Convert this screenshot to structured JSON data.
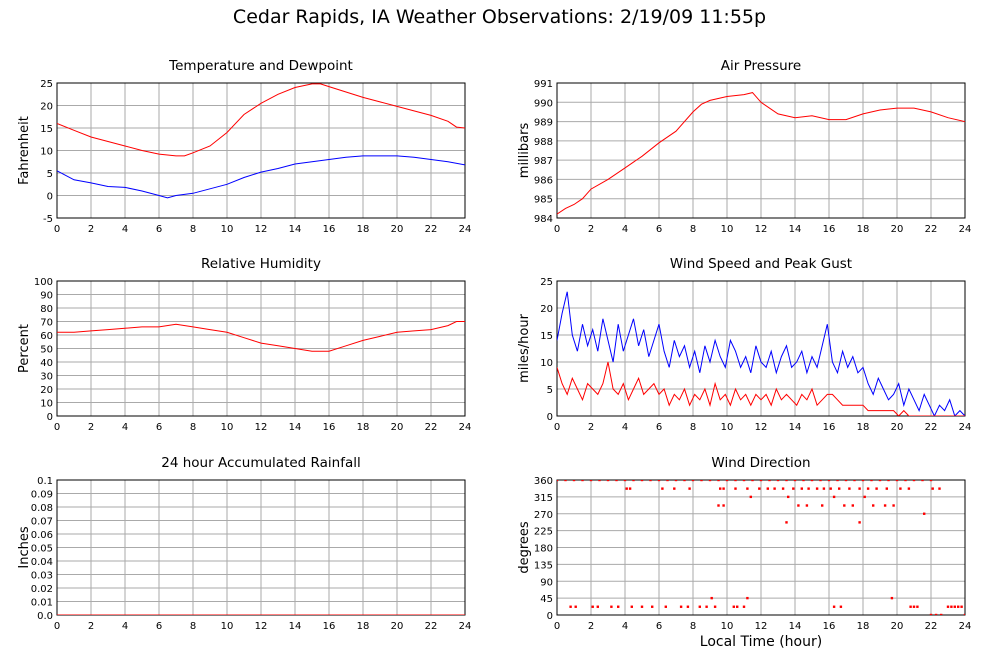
{
  "title": "Cedar Rapids, IA Weather Observations: 2/19/09 11:55p",
  "xlabel": "Local Time (hour)",
  "colors": {
    "red": "#ff0000",
    "blue": "#0000ff",
    "grid": "#aaaaaa"
  },
  "chart_data": [
    {
      "id": "temp",
      "type": "line",
      "title": "Temperature and Dewpoint",
      "ylabel": "Fahrenheit",
      "xlim": [
        0,
        24
      ],
      "ylim": [
        -5,
        25
      ],
      "xticks": [
        "0",
        "2",
        "4",
        "6",
        "8",
        "10",
        "12",
        "14",
        "16",
        "18",
        "20",
        "22",
        "24"
      ],
      "yticks": [
        "-5",
        "0",
        "5",
        "10",
        "15",
        "20",
        "25"
      ],
      "grid": true,
      "series": [
        {
          "color": "#ff0000",
          "x": [
            0,
            1,
            2,
            3,
            4,
            5,
            6,
            7,
            7.5,
            8,
            9,
            10,
            11,
            12,
            13,
            14,
            15,
            15.5,
            16,
            17,
            18,
            19,
            20,
            21,
            22,
            23,
            23.5,
            24
          ],
          "y": [
            16,
            14.5,
            13,
            12,
            11,
            10,
            9.2,
            8.8,
            8.8,
            9.5,
            11,
            14,
            18,
            20.5,
            22.5,
            24,
            24.8,
            24.8,
            24.2,
            23,
            21.8,
            20.8,
            19.8,
            18.8,
            17.8,
            16.5,
            15.2,
            15
          ]
        },
        {
          "color": "#0000ff",
          "x": [
            0,
            1,
            2,
            3,
            4,
            5,
            6,
            6.5,
            7,
            8,
            9,
            10,
            11,
            12,
            13,
            14,
            15,
            16,
            17,
            18,
            19,
            20,
            21,
            22,
            23,
            24
          ],
          "y": [
            5.5,
            3.5,
            2.8,
            2,
            1.8,
            1,
            0,
            -0.5,
            0,
            0.5,
            1.5,
            2.5,
            4,
            5.2,
            6,
            7,
            7.5,
            8,
            8.5,
            8.8,
            8.8,
            8.8,
            8.5,
            8,
            7.5,
            6.8
          ]
        }
      ]
    },
    {
      "id": "pressure",
      "type": "line",
      "title": "Air Pressure",
      "ylabel": "millibars",
      "xlim": [
        0,
        24
      ],
      "ylim": [
        984,
        991
      ],
      "xticks": [
        "0",
        "2",
        "4",
        "6",
        "8",
        "10",
        "12",
        "14",
        "16",
        "18",
        "20",
        "22",
        "24"
      ],
      "yticks": [
        "984",
        "985",
        "986",
        "987",
        "988",
        "989",
        "990",
        "991"
      ],
      "grid": true,
      "series": [
        {
          "color": "#ff0000",
          "x": [
            0,
            0.5,
            1,
            1.5,
            2,
            3,
            4,
            5,
            6,
            7,
            8,
            8.5,
            9,
            10,
            11,
            11.5,
            12,
            13,
            14,
            15,
            16,
            17,
            18,
            19,
            20,
            21,
            22,
            23,
            24
          ],
          "y": [
            984.2,
            984.5,
            984.7,
            985,
            985.5,
            986,
            986.6,
            987.2,
            987.9,
            988.5,
            989.5,
            989.9,
            990.1,
            990.3,
            990.4,
            990.5,
            990,
            989.4,
            989.2,
            989.3,
            989.1,
            989.1,
            989.4,
            989.6,
            989.7,
            989.7,
            989.5,
            989.2,
            989
          ]
        }
      ]
    },
    {
      "id": "humidity",
      "type": "line",
      "title": "Relative Humidity",
      "ylabel": "Percent",
      "xlim": [
        0,
        24
      ],
      "ylim": [
        0,
        100
      ],
      "xticks": [
        "0",
        "2",
        "4",
        "6",
        "8",
        "10",
        "12",
        "14",
        "16",
        "18",
        "20",
        "22",
        "24"
      ],
      "yticks": [
        "0",
        "10",
        "20",
        "30",
        "40",
        "50",
        "60",
        "70",
        "80",
        "90",
        "100"
      ],
      "grid": true,
      "series": [
        {
          "color": "#ff0000",
          "x": [
            0,
            1,
            2,
            3,
            4,
            5,
            6,
            7,
            8,
            9,
            10,
            11,
            12,
            13,
            14,
            15,
            16,
            17,
            18,
            19,
            20,
            21,
            22,
            23,
            23.5,
            24
          ],
          "y": [
            62,
            62,
            63,
            64,
            65,
            66,
            66,
            68,
            66,
            64,
            62,
            58,
            54,
            52,
            50,
            48,
            48,
            52,
            56,
            59,
            62,
            63,
            64,
            67,
            70,
            70
          ]
        }
      ]
    },
    {
      "id": "wind",
      "type": "line",
      "title": "Wind Speed and Peak Gust",
      "ylabel": "miles/hour",
      "xlim": [
        0,
        24
      ],
      "ylim": [
        0,
        25
      ],
      "xticks": [
        "0",
        "2",
        "4",
        "6",
        "8",
        "10",
        "12",
        "14",
        "16",
        "18",
        "20",
        "22",
        "24"
      ],
      "yticks": [
        "0",
        "5",
        "10",
        "15",
        "20",
        "25"
      ],
      "grid": true,
      "series": [
        {
          "color": "#0000ff",
          "x": [
            0,
            0.3,
            0.6,
            0.9,
            1.2,
            1.5,
            1.8,
            2.1,
            2.4,
            2.7,
            3,
            3.3,
            3.6,
            3.9,
            4.2,
            4.5,
            4.8,
            5.1,
            5.4,
            5.7,
            6,
            6.3,
            6.6,
            6.9,
            7.2,
            7.5,
            7.8,
            8.1,
            8.4,
            8.7,
            9,
            9.3,
            9.6,
            9.9,
            10.2,
            10.5,
            10.8,
            11.1,
            11.4,
            11.7,
            12,
            12.3,
            12.6,
            12.9,
            13.2,
            13.5,
            13.8,
            14.1,
            14.4,
            14.7,
            15,
            15.3,
            15.6,
            15.9,
            16.2,
            16.5,
            16.8,
            17.1,
            17.4,
            17.7,
            18,
            18.3,
            18.6,
            18.9,
            19.2,
            19.5,
            19.8,
            20.1,
            20.4,
            20.7,
            21,
            21.3,
            21.6,
            21.9,
            22.2,
            22.5,
            22.8,
            23.1,
            23.4,
            23.7,
            24
          ],
          "y": [
            14,
            19,
            23,
            15,
            12,
            17,
            13,
            16,
            12,
            18,
            14,
            10,
            17,
            12,
            15,
            18,
            13,
            16,
            11,
            14,
            17,
            12,
            9,
            14,
            11,
            13,
            9,
            12,
            8,
            13,
            10,
            14,
            11,
            9,
            14,
            12,
            9,
            11,
            8,
            13,
            10,
            9,
            12,
            8,
            11,
            13,
            9,
            10,
            12,
            8,
            11,
            9,
            13,
            17,
            10,
            8,
            12,
            9,
            11,
            8,
            9,
            6,
            4,
            7,
            5,
            3,
            4,
            6,
            2,
            5,
            3,
            1,
            4,
            2,
            0,
            2,
            1,
            3,
            0,
            1,
            0
          ]
        },
        {
          "color": "#ff0000",
          "x": [
            0,
            0.3,
            0.6,
            0.9,
            1.2,
            1.5,
            1.8,
            2.1,
            2.4,
            2.7,
            3,
            3.3,
            3.6,
            3.9,
            4.2,
            4.5,
            4.8,
            5.1,
            5.4,
            5.7,
            6,
            6.3,
            6.6,
            6.9,
            7.2,
            7.5,
            7.8,
            8.1,
            8.4,
            8.7,
            9,
            9.3,
            9.6,
            9.9,
            10.2,
            10.5,
            10.8,
            11.1,
            11.4,
            11.7,
            12,
            12.3,
            12.6,
            12.9,
            13.2,
            13.5,
            13.8,
            14.1,
            14.4,
            14.7,
            15,
            15.3,
            15.6,
            15.9,
            16.2,
            16.5,
            16.8,
            17.1,
            17.4,
            17.7,
            18,
            18.3,
            18.6,
            18.9,
            19.2,
            19.5,
            19.8,
            20.1,
            20.4,
            20.7,
            21,
            21.3,
            21.6,
            21.9,
            22.2,
            22.5,
            22.8,
            23.1,
            23.4,
            23.7,
            24
          ],
          "y": [
            9,
            6,
            4,
            7,
            5,
            3,
            6,
            5,
            4,
            6,
            10,
            5,
            4,
            6,
            3,
            5,
            7,
            4,
            5,
            6,
            4,
            5,
            2,
            4,
            3,
            5,
            2,
            4,
            3,
            5,
            2,
            6,
            3,
            4,
            2,
            5,
            3,
            4,
            2,
            4,
            3,
            4,
            2,
            5,
            3,
            4,
            3,
            2,
            4,
            3,
            5,
            2,
            3,
            4,
            4,
            3,
            2,
            2,
            2,
            2,
            2,
            1,
            1,
            1,
            1,
            1,
            1,
            0,
            1,
            0,
            0,
            0,
            0,
            0,
            0,
            0,
            0,
            0,
            0,
            0,
            0
          ]
        }
      ]
    },
    {
      "id": "rain",
      "type": "line",
      "title": "24 hour Accumulated Rainfall",
      "ylabel": "Inches",
      "xlim": [
        0,
        24
      ],
      "ylim": [
        0,
        0.1
      ],
      "xticks": [
        "0",
        "2",
        "4",
        "6",
        "8",
        "10",
        "12",
        "14",
        "16",
        "18",
        "20",
        "22",
        "24"
      ],
      "yticks": [
        "0.0",
        "0.01",
        "0.02",
        "0.03",
        "0.04",
        "0.05",
        "0.06",
        "0.07",
        "0.08",
        "0.09",
        "0.1"
      ],
      "grid": true,
      "series": [
        {
          "color": "#ff0000",
          "x": [
            0,
            24
          ],
          "y": [
            0,
            0
          ]
        }
      ]
    },
    {
      "id": "winddir",
      "type": "scatter",
      "title": "Wind Direction",
      "ylabel": "degrees",
      "xlim": [
        0,
        24
      ],
      "ylim": [
        0,
        360
      ],
      "xticks": [
        "0",
        "2",
        "4",
        "6",
        "8",
        "10",
        "12",
        "14",
        "16",
        "18",
        "20",
        "22",
        "24"
      ],
      "yticks": [
        "0",
        "45",
        "90",
        "135",
        "180",
        "225",
        "270",
        "315",
        "360"
      ],
      "grid": true,
      "series": [
        {
          "color": "#ff0000",
          "x": [
            0,
            0.5,
            1,
            1.5,
            2,
            2.5,
            3,
            3.5,
            4,
            4.5,
            5,
            5.5,
            6,
            6.5,
            7,
            7.5,
            8,
            8.5,
            9,
            9.5,
            10,
            10.5,
            11,
            11.5,
            12,
            12.5,
            13,
            13.5,
            14,
            14.5,
            15,
            15.5,
            16,
            16.5,
            17,
            17.5,
            18,
            18.5,
            19,
            19.5,
            20,
            20.5,
            21,
            21.5,
            22,
            4.1,
            4.3,
            6.2,
            6.9,
            7.8,
            9.6,
            9.8,
            10.5,
            11.2,
            11.9,
            12.4,
            12.8,
            13.3,
            13.9,
            14.4,
            14.8,
            15.3,
            15.7,
            16.1,
            16.6,
            17.2,
            17.8,
            18.3,
            18.8,
            19.4,
            20.2,
            20.7,
            22.1,
            22.5,
            9.5,
            9.8,
            11.4,
            13.6,
            14.2,
            14.7,
            15.6,
            16.3,
            16.9,
            17.4,
            18.1,
            18.6,
            19.3,
            19.8,
            21.6,
            13.5,
            17.8,
            0.8,
            1.1,
            2.1,
            2.4,
            3.2,
            3.6,
            4.4,
            5.0,
            5.6,
            6.4,
            7.3,
            7.7,
            8.4,
            8.8,
            9.3,
            10.4,
            10.6,
            11.0,
            16.3,
            16.7,
            20.8,
            21.0,
            21.2,
            22.0,
            22.3,
            22.6,
            23.0,
            23.2,
            23.4,
            23.6,
            23.8,
            24,
            9.1,
            11.2,
            19.7
          ],
          "y": [
            360,
            360,
            360,
            360,
            360,
            360,
            360,
            360,
            360,
            360,
            360,
            360,
            360,
            360,
            360,
            360,
            360,
            360,
            360,
            360,
            360,
            360,
            360,
            360,
            360,
            360,
            360,
            360,
            360,
            360,
            360,
            360,
            360,
            360,
            360,
            360,
            360,
            360,
            360,
            360,
            360,
            360,
            360,
            360,
            360,
            337,
            337,
            337,
            337,
            337,
            337,
            337,
            337,
            337,
            337,
            337,
            337,
            337,
            337,
            337,
            337,
            337,
            337,
            337,
            337,
            337,
            337,
            337,
            337,
            337,
            337,
            337,
            337,
            337,
            292,
            292,
            315,
            315,
            292,
            292,
            292,
            315,
            292,
            292,
            315,
            292,
            292,
            292,
            270,
            247,
            247,
            22,
            22,
            22,
            22,
            22,
            22,
            22,
            22,
            22,
            22,
            22,
            22,
            22,
            22,
            22,
            22,
            22,
            22,
            22,
            22,
            22,
            22,
            22,
            0,
            0,
            0,
            22,
            22,
            22,
            22,
            22,
            0,
            45,
            45,
            45
          ]
        }
      ]
    }
  ]
}
